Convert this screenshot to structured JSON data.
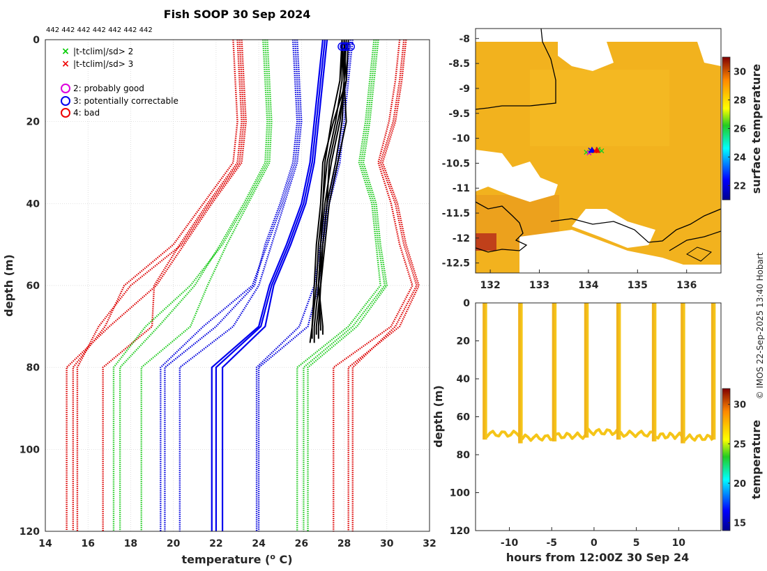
{
  "chart_data": [
    {
      "type": "line",
      "title": "Fish SOOP 30 Sep 2024",
      "top_annotation": "442 442 442 442 442 442 442",
      "xlabel": "temperature (° C)",
      "xlabel_parts": {
        "pre": "temperature (",
        "sup": "o",
        "post": " C)"
      },
      "ylabel": "depth (m)",
      "xlim": [
        14,
        32
      ],
      "ylim": [
        0,
        120
      ],
      "y_reversed": true,
      "xticks": [
        14,
        16,
        18,
        20,
        22,
        24,
        26,
        28,
        30,
        32
      ],
      "yticks": [
        0,
        20,
        40,
        60,
        80,
        100,
        120
      ],
      "grid": true,
      "legend": {
        "position": "top-left",
        "entries": [
          {
            "marker": "x",
            "color": "#00cc00",
            "label": "|t-tclim|/sd> 2"
          },
          {
            "marker": "x",
            "color": "#ee0000",
            "label": "|t-tclim|/sd> 3"
          },
          {
            "marker": "o",
            "color": "#dd00dd",
            "label": "2: probably good"
          },
          {
            "marker": "o",
            "color": "#0000ee",
            "label": "3: potentially correctable"
          },
          {
            "marker": "o",
            "color": "#ee0000",
            "label": "4: bad"
          }
        ]
      },
      "depths": [
        0,
        10,
        20,
        30,
        40,
        50,
        60,
        70,
        80,
        120
      ],
      "series": [
        {
          "name": "clim -3sd a",
          "color": "#dd0000",
          "style": "dotted",
          "x": [
            22.8,
            22.9,
            23.0,
            22.8,
            21.4,
            20.0,
            17.7,
            16.8,
            15.3,
            15.3
          ]
        },
        {
          "name": "clim -3sd b",
          "color": "#dd0000",
          "style": "dotted",
          "x": [
            23.0,
            23.1,
            23.2,
            23.0,
            21.6,
            20.3,
            19.1,
            19.0,
            16.7,
            16.7
          ]
        },
        {
          "name": "clim -3sd c",
          "color": "#dd0000",
          "style": "dotted",
          "x": [
            23.2,
            23.3,
            23.4,
            23.2,
            21.8,
            20.5,
            19.2,
            17.0,
            15.0,
            15.0
          ]
        },
        {
          "name": "clim -3sd d",
          "color": "#dd0000",
          "style": "dotted",
          "x": [
            23.1,
            23.2,
            23.3,
            23.1,
            21.7,
            20.4,
            18.0,
            16.5,
            15.5,
            15.5
          ]
        },
        {
          "name": "clim -2sd a",
          "color": "#22cc22",
          "style": "dotted",
          "x": [
            24.2,
            24.3,
            24.4,
            24.3,
            23.3,
            22.2,
            21.0,
            19.3,
            17.5,
            17.5
          ]
        },
        {
          "name": "clim -2sd b",
          "color": "#22cc22",
          "style": "dotted",
          "x": [
            24.4,
            24.5,
            24.6,
            24.5,
            23.5,
            22.5,
            21.6,
            20.8,
            18.5,
            18.5
          ]
        },
        {
          "name": "clim -2sd c",
          "color": "#22cc22",
          "style": "dotted",
          "x": [
            24.3,
            24.4,
            24.5,
            24.4,
            23.4,
            22.3,
            20.8,
            18.7,
            17.2,
            17.2
          ]
        },
        {
          "name": "clim -1sd a",
          "color": "#0000dd",
          "style": "dotted",
          "x": [
            25.6,
            25.7,
            25.8,
            25.6,
            25.0,
            24.3,
            23.8,
            22.0,
            19.6,
            19.6
          ]
        },
        {
          "name": "clim -1sd b",
          "color": "#0000dd",
          "style": "dotted",
          "x": [
            25.8,
            25.9,
            26.0,
            25.8,
            25.2,
            24.6,
            24.0,
            22.8,
            20.3,
            20.3
          ]
        },
        {
          "name": "clim -1sd c",
          "color": "#0000dd",
          "style": "dotted",
          "x": [
            25.7,
            25.8,
            25.9,
            25.7,
            25.1,
            24.4,
            23.7,
            21.4,
            19.4,
            19.4
          ]
        },
        {
          "name": "clim mean a",
          "color": "#0000ee",
          "style": "solid",
          "x": [
            27.0,
            26.8,
            26.6,
            26.4,
            26.0,
            25.3,
            24.5,
            24.0,
            21.8,
            21.8
          ]
        },
        {
          "name": "clim mean b",
          "color": "#0000ee",
          "style": "solid",
          "x": [
            27.1,
            26.9,
            26.7,
            26.5,
            26.1,
            25.4,
            24.6,
            24.1,
            22.0,
            22.0
          ]
        },
        {
          "name": "clim mean c",
          "color": "#0000ee",
          "style": "solid",
          "x": [
            27.2,
            27.0,
            26.8,
            26.6,
            26.2,
            25.5,
            24.7,
            24.3,
            22.3,
            22.3
          ]
        },
        {
          "name": "clim +1sd a",
          "color": "#0000dd",
          "style": "dotted",
          "x": [
            28.4,
            28.2,
            28.0,
            27.8,
            27.3,
            27.0,
            26.8,
            26.3,
            24.0,
            24.0
          ]
        },
        {
          "name": "clim +1sd b",
          "color": "#0000dd",
          "style": "dotted",
          "x": [
            28.3,
            28.1,
            27.9,
            27.7,
            27.2,
            26.9,
            26.6,
            25.9,
            23.9,
            23.9
          ]
        },
        {
          "name": "clim +2sd a",
          "color": "#22cc22",
          "style": "dotted",
          "x": [
            29.4,
            29.2,
            29.0,
            28.7,
            29.3,
            29.5,
            29.7,
            28.2,
            25.8,
            25.8
          ]
        },
        {
          "name": "clim +2sd b",
          "color": "#22cc22",
          "style": "dotted",
          "x": [
            29.6,
            29.4,
            29.2,
            28.9,
            29.5,
            29.7,
            30.0,
            28.6,
            26.3,
            26.3
          ]
        },
        {
          "name": "clim +2sd c",
          "color": "#22cc22",
          "style": "dotted",
          "x": [
            29.5,
            29.3,
            29.1,
            28.8,
            29.4,
            29.6,
            29.9,
            28.4,
            26.1,
            26.1
          ]
        },
        {
          "name": "clim +3sd a",
          "color": "#dd0000",
          "style": "dotted",
          "x": [
            30.6,
            30.4,
            30.1,
            29.6,
            30.2,
            30.6,
            31.2,
            30.2,
            27.5,
            27.5
          ]
        },
        {
          "name": "clim +3sd b",
          "color": "#dd0000",
          "style": "dotted",
          "x": [
            30.9,
            30.7,
            30.4,
            29.8,
            30.5,
            30.9,
            31.5,
            30.6,
            28.2,
            28.2
          ]
        },
        {
          "name": "clim +3sd c",
          "color": "#dd0000",
          "style": "dotted",
          "x": [
            30.8,
            30.6,
            30.3,
            29.7,
            30.4,
            30.8,
            31.4,
            30.4,
            28.4,
            28.4
          ]
        }
      ],
      "observed_profiles": {
        "color": "#000000",
        "max_depth": 74,
        "profiles": [
          {
            "depth": [
              0,
              10,
              20,
              30,
              40,
              50,
              60,
              70,
              73
            ],
            "x": [
              27.9,
              27.9,
              27.6,
              27.2,
              27.0,
              26.8,
              26.7,
              26.5,
              26.5
            ]
          },
          {
            "depth": [
              0,
              10,
              20,
              30,
              40,
              50,
              60,
              70,
              74
            ],
            "x": [
              28.0,
              28.0,
              27.8,
              27.4,
              27.1,
              26.9,
              26.8,
              26.6,
              26.6
            ]
          },
          {
            "depth": [
              0,
              10,
              20,
              30,
              40,
              50,
              60,
              70,
              72
            ],
            "x": [
              28.1,
              28.0,
              27.9,
              27.6,
              27.2,
              27.0,
              26.9,
              26.7,
              26.7
            ]
          },
          {
            "depth": [
              0,
              10,
              20,
              30,
              40,
              50,
              60,
              70,
              73
            ],
            "x": [
              27.9,
              28.0,
              28.1,
              27.7,
              27.3,
              27.1,
              26.9,
              26.8,
              26.8
            ]
          },
          {
            "depth": [
              0,
              10,
              20,
              30,
              40,
              50,
              60,
              70,
              71
            ],
            "x": [
              28.0,
              28.1,
              27.7,
              27.3,
              27.2,
              27.0,
              26.8,
              26.9,
              26.9
            ]
          },
          {
            "depth": [
              0,
              10,
              20,
              30,
              40,
              50,
              60,
              70,
              74
            ],
            "x": [
              28.2,
              28.1,
              27.5,
              27.0,
              26.9,
              26.7,
              26.6,
              26.5,
              26.4
            ]
          },
          {
            "depth": [
              0,
              10,
              20,
              30,
              40,
              50,
              60,
              70,
              72
            ],
            "x": [
              27.9,
              27.8,
              27.4,
              27.1,
              27.0,
              26.9,
              26.8,
              27.0,
              27.0
            ]
          }
        ]
      },
      "surface_flags": [
        {
          "x": 27.9,
          "depth": 1
        },
        {
          "x": 28.0,
          "depth": 1
        },
        {
          "x": 28.1,
          "depth": 1
        },
        {
          "x": 28.3,
          "depth": 1
        }
      ]
    },
    {
      "type": "heatmap",
      "title": "surface temperature map",
      "xlim": [
        131.7,
        136.7
      ],
      "ylim": [
        -12.7,
        -7.8
      ],
      "xticks": [
        132,
        133,
        134,
        135,
        136
      ],
      "yticks": [
        -8,
        -8.5,
        -9,
        -9.5,
        -10,
        -10.5,
        -11,
        -11.5,
        -12,
        -12.5
      ],
      "ytick_labels": [
        "-8",
        "-8.5",
        "-9",
        "-9.5",
        "-10",
        "-10.5",
        "-11",
        "-11.5",
        "-12",
        "-12.5"
      ],
      "colorbar": {
        "label": "surface temperature",
        "range": [
          21,
          31
        ],
        "ticks": [
          22,
          24,
          26,
          28,
          30
        ]
      },
      "track_point": {
        "lon": 134.1,
        "lat": -10.25
      }
    },
    {
      "type": "scatter",
      "xlabel": "hours from 12:00Z 30 Sep 24",
      "ylabel": "depth (m)",
      "xlim": [
        -14,
        15
      ],
      "ylim": [
        0,
        120
      ],
      "y_reversed": true,
      "xticks": [
        -10,
        -5,
        0,
        5,
        10
      ],
      "yticks": [
        0,
        20,
        40,
        60,
        80,
        100,
        120
      ],
      "colorbar": {
        "label": "temperature",
        "range": [
          14,
          32
        ],
        "ticks": [
          15,
          20,
          25,
          30
        ]
      },
      "casts_hours": [
        -13,
        -8.8,
        -4.8,
        -1.0,
        2.8,
        7.0,
        10.4,
        14.0
      ],
      "bottom_depth": [
        69,
        71,
        70,
        68,
        69,
        70,
        71,
        69,
        68
      ]
    }
  ],
  "credit": "© IMOS 22-Sep-2025 13:40 Hobart"
}
